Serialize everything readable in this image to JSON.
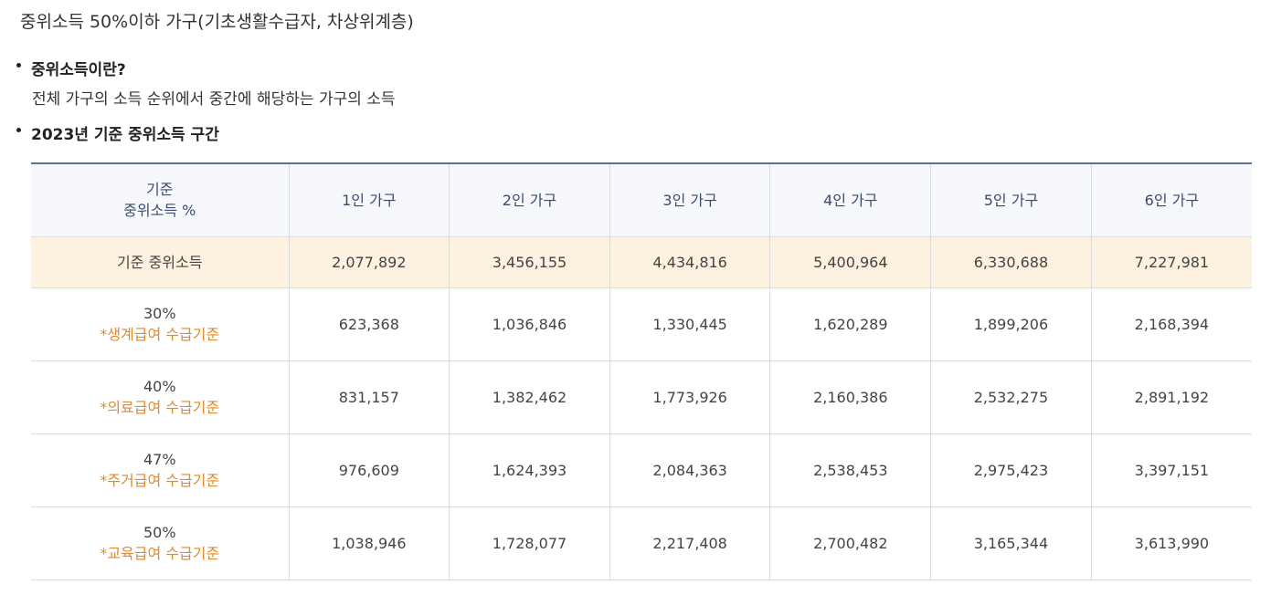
{
  "title": "중위소득 50%이하 가구(기초생활수급자, 차상위계층)",
  "bullets": [
    {
      "heading": "중위소득이란?",
      "description": "전체 가구의 소득 순위에서 중간에 해당하는 가구의 소득"
    },
    {
      "heading": "2023년 기준 중위소득 구간",
      "description": ""
    }
  ],
  "table": {
    "header_label_line1": "기준",
    "header_label_line2": "중위소득 %",
    "columns": [
      "1인 가구",
      "2인 가구",
      "3인 가구",
      "4인 가구",
      "5인 가구",
      "6인 가구"
    ],
    "median_row": {
      "label": "기준 중위소득",
      "values": [
        "2,077,892",
        "3,456,155",
        "4,434,816",
        "5,400,964",
        "6,330,688",
        "7,227,981"
      ]
    },
    "rows": [
      {
        "percent": "30%",
        "note": "*생계급여 수급기준",
        "values": [
          "623,368",
          "1,036,846",
          "1,330,445",
          "1,620,289",
          "1,899,206",
          "2,168,394"
        ]
      },
      {
        "percent": "40%",
        "note": "*의료급여 수급기준",
        "values": [
          "831,157",
          "1,382,462",
          "1,773,926",
          "2,160,386",
          "2,532,275",
          "2,891,192"
        ]
      },
      {
        "percent": "47%",
        "note": "*주거급여 수급기준",
        "values": [
          "976,609",
          "1,624,393",
          "2,084,363",
          "2,538,453",
          "2,975,423",
          "3,397,151"
        ]
      },
      {
        "percent": "50%",
        "note": "*교육급여 수급기준",
        "values": [
          "1,038,946",
          "1,728,077",
          "2,217,408",
          "2,700,482",
          "3,165,344",
          "3,613,990"
        ]
      }
    ]
  },
  "colors": {
    "header_bg": "#f6f8fc",
    "header_border": "#5b7397",
    "median_row_bg": "#fdf1df",
    "note_text": "#e08a2e"
  }
}
